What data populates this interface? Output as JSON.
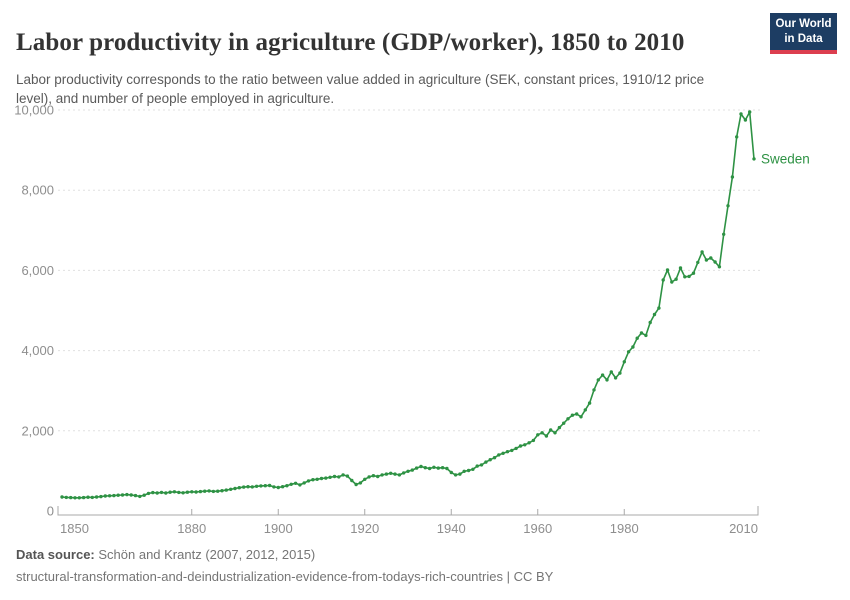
{
  "header": {
    "title": "Labor productivity in agriculture (GDP/worker), 1850 to 2010",
    "subtitle": "Labor productivity corresponds to the ratio between value added in agriculture (SEK, constant prices, 1910/12 price level), and number of people employed in agriculture.",
    "logo": {
      "line1": "Our World",
      "line2": "in Data",
      "bg_color": "#1d3d63",
      "stripe_color": "#dc3e4f"
    }
  },
  "chart_data": {
    "type": "line",
    "title": "Labor productivity in agriculture (GDP/worker), 1850 to 2010",
    "xlabel": "",
    "ylabel": "",
    "xlim": [
      1850,
      2010
    ],
    "ylim": [
      0,
      10000
    ],
    "x_ticks": [
      1850,
      1880,
      1900,
      1920,
      1940,
      1960,
      1980,
      2010
    ],
    "y_ticks": [
      0,
      2000,
      4000,
      6000,
      8000,
      10000
    ],
    "grid": "horizontal-dashed",
    "legend_position": "end-of-line-label",
    "series": [
      {
        "name": "Sweden",
        "color": "#2E9244",
        "x_start": 1850,
        "x_end": 2010,
        "x_interval": 1,
        "values": [
          350,
          340,
          335,
          330,
          330,
          335,
          345,
          340,
          350,
          360,
          375,
          380,
          385,
          395,
          400,
          410,
          400,
          385,
          365,
          395,
          440,
          460,
          450,
          465,
          450,
          470,
          480,
          465,
          455,
          470,
          480,
          475,
          485,
          495,
          500,
          490,
          495,
          505,
          520,
          540,
          560,
          580,
          595,
          605,
          600,
          615,
          625,
          630,
          635,
          600,
          585,
          605,
          630,
          665,
          690,
          650,
          700,
          750,
          780,
          790,
          810,
          820,
          840,
          860,
          850,
          900,
          870,
          760,
          660,
          700,
          790,
          850,
          880,
          860,
          900,
          920,
          940,
          920,
          900,
          950,
          990,
          1020,
          1070,
          1110,
          1080,
          1060,
          1090,
          1070,
          1080,
          1060,
          960,
          900,
          920,
          990,
          1010,
          1040,
          1120,
          1150,
          1220,
          1280,
          1330,
          1400,
          1440,
          1480,
          1510,
          1560,
          1620,
          1650,
          1700,
          1760,
          1900,
          1950,
          1870,
          2020,
          1950,
          2080,
          2190,
          2300,
          2390,
          2420,
          2350,
          2520,
          2690,
          3020,
          3270,
          3390,
          3270,
          3470,
          3320,
          3440,
          3720,
          3970,
          4090,
          4310,
          4440,
          4380,
          4700,
          4900,
          5060,
          5760,
          6010,
          5710,
          5780,
          6060,
          5840,
          5850,
          5930,
          6200,
          6460,
          6260,
          6310,
          6210,
          6090,
          6900,
          7610,
          8330,
          9330,
          9900,
          9750,
          9950,
          8780
        ]
      }
    ]
  },
  "footer": {
    "datasource_label": "Data source:",
    "datasource_value": " Schön and Krantz (2007, 2012, 2015)",
    "note_line": "structural-transformation-and-deindustrialization-evidence-from-todays-rich-countries | CC BY"
  }
}
